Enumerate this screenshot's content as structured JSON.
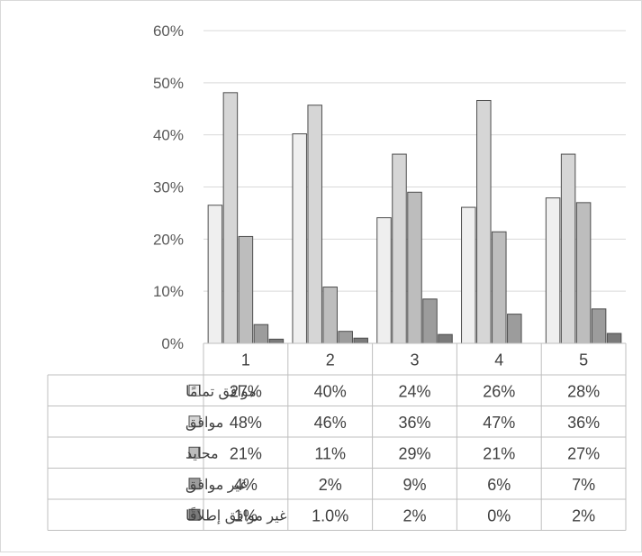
{
  "chart_data": {
    "type": "bar",
    "categories": [
      "1",
      "2",
      "3",
      "4",
      "5"
    ],
    "y_ticks": [
      "0%",
      "10%",
      "20%",
      "30%",
      "40%",
      "50%",
      "60%"
    ],
    "ylim": [
      0,
      60
    ],
    "grid": true,
    "legend_placement": "data-table-left",
    "series": [
      {
        "name": "موافق تمامًا",
        "values": [
          26.5,
          40.2,
          24.1,
          26.1,
          27.9
        ],
        "labels": [
          "27%",
          "40%",
          "24%",
          "26%",
          "28%"
        ],
        "color": "#efefef"
      },
      {
        "name": "موافق",
        "values": [
          48.1,
          45.7,
          36.3,
          46.6,
          36.3
        ],
        "labels": [
          "48%",
          "46%",
          "36%",
          "47%",
          "36%"
        ],
        "color": "#d6d6d6"
      },
      {
        "name": "محايد",
        "values": [
          20.5,
          10.8,
          29.0,
          21.4,
          27.0
        ],
        "labels": [
          "21%",
          "11%",
          "29%",
          "21%",
          "27%"
        ],
        "color": "#bdbdbd"
      },
      {
        "name": "غير موافق",
        "values": [
          3.6,
          2.3,
          8.5,
          5.6,
          6.6
        ],
        "labels": [
          "4%",
          "2%",
          "9%",
          "6%",
          "7%"
        ],
        "color": "#9c9c9c"
      },
      {
        "name": "غير موافق إطلاقًا",
        "values": [
          0.8,
          1.0,
          1.7,
          0.0,
          1.9
        ],
        "labels": [
          "1%",
          "1.0%",
          "2%",
          "0%",
          "2%"
        ],
        "color": "#7a7a7a"
      }
    ]
  }
}
